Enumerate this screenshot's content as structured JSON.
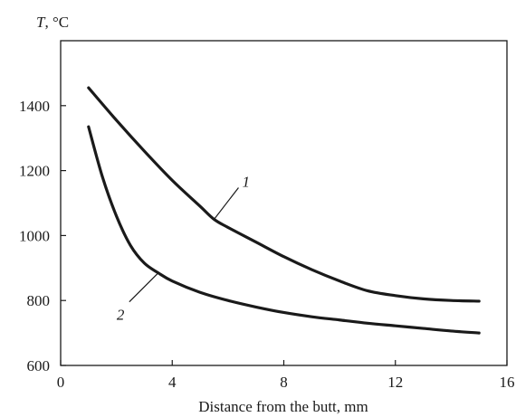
{
  "chart_data": {
    "type": "line",
    "title": "",
    "ylabel_symbol": "T",
    "ylabel_unit": ", °C",
    "xlabel": "Distance from the butt, mm",
    "xlim": [
      0,
      16
    ],
    "ylim": [
      600,
      1600
    ],
    "xticks": [
      0,
      4,
      8,
      12,
      16
    ],
    "yticks": [
      600,
      800,
      1000,
      1200,
      1400
    ],
    "grid": false,
    "legend": "none",
    "series": [
      {
        "label": "1",
        "x": [
          1.0,
          2.0,
          3.0,
          4.0,
          5.0,
          5.5,
          6.0,
          7.0,
          8.0,
          9.0,
          10.0,
          11.0,
          12.0,
          13.0,
          14.0,
          15.0
        ],
        "y": [
          1455,
          1355,
          1260,
          1170,
          1090,
          1050,
          1025,
          980,
          935,
          895,
          860,
          830,
          815,
          805,
          800,
          798
        ]
      },
      {
        "label": "2",
        "x": [
          1.0,
          1.5,
          2.0,
          2.5,
          3.0,
          3.5,
          4.0,
          5.0,
          6.0,
          7.0,
          8.0,
          9.0,
          10.0,
          11.0,
          12.0,
          13.0,
          14.0,
          15.0
        ],
        "y": [
          1335,
          1180,
          1060,
          970,
          915,
          885,
          860,
          825,
          800,
          780,
          763,
          750,
          740,
          730,
          722,
          714,
          706,
          700
        ]
      }
    ]
  }
}
